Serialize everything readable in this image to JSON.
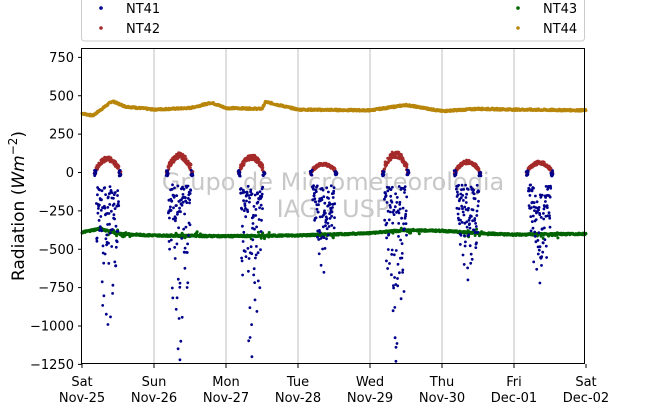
{
  "chart_data": {
    "type": "scatter",
    "ylabel": "Radiation (",
    "ylabel_unit_base": "Wm",
    "ylabel_unit_exp": "−2",
    "ylabel_close": ")",
    "ylim": [
      -1250,
      800
    ],
    "yticks": [
      {
        "value": 750,
        "label": "750"
      },
      {
        "value": 500,
        "label": "500"
      },
      {
        "value": 250,
        "label": "250"
      },
      {
        "value": 0,
        "label": "0"
      },
      {
        "value": -250,
        "label": "−250"
      },
      {
        "value": -500,
        "label": "−500"
      },
      {
        "value": -750,
        "label": "−750"
      },
      {
        "value": -1000,
        "label": "−1000"
      },
      {
        "value": -1250,
        "label": "−1250"
      }
    ],
    "xlim": [
      0,
      7
    ],
    "xticks": [
      {
        "value": 0,
        "day": "Sat",
        "date": "Nov-25"
      },
      {
        "value": 1,
        "day": "Sun",
        "date": "Nov-26"
      },
      {
        "value": 2,
        "day": "Mon",
        "date": "Nov-27"
      },
      {
        "value": 3,
        "day": "Tue",
        "date": "Nov-28"
      },
      {
        "value": 4,
        "day": "Wed",
        "date": "Nov-29"
      },
      {
        "value": 5,
        "day": "Thu",
        "date": "Nov-30"
      },
      {
        "value": 6,
        "day": "Fri",
        "date": "Dec-01"
      },
      {
        "value": 7,
        "day": "Sat",
        "date": "Dec-02"
      }
    ],
    "grid": "vertical",
    "legend_position": "top",
    "watermark": [
      "Grupo de Micrometeorologia",
      "IAG - USP"
    ],
    "series": [
      {
        "name": "NT41",
        "color": "#00008b",
        "description": "daytime troughs",
        "day_minima": [
          -990,
          -1220,
          -1200,
          -650,
          -1230,
          -700,
          -720
        ]
      },
      {
        "name": "NT42",
        "color": "#a52a2a",
        "description": "daytime humps",
        "day_peaks": [
          95,
          120,
          110,
          60,
          130,
          75,
          70
        ]
      },
      {
        "name": "NT43",
        "color": "#006400",
        "points": [
          [
            0,
            -390
          ],
          [
            0.25,
            -365
          ],
          [
            0.5,
            -400
          ],
          [
            1,
            -410
          ],
          [
            2,
            -415
          ],
          [
            3,
            -410
          ],
          [
            4,
            -395
          ],
          [
            4.5,
            -375
          ],
          [
            5,
            -380
          ],
          [
            5.5,
            -395
          ],
          [
            6,
            -405
          ],
          [
            7,
            -400
          ]
        ]
      },
      {
        "name": "NT44",
        "color": "#b8860b",
        "points": [
          [
            0,
            385
          ],
          [
            0.15,
            370
          ],
          [
            0.42,
            465
          ],
          [
            0.6,
            430
          ],
          [
            1,
            410
          ],
          [
            1.5,
            420
          ],
          [
            1.8,
            455
          ],
          [
            2,
            420
          ],
          [
            2.5,
            415
          ],
          [
            2.55,
            460
          ],
          [
            3,
            410
          ],
          [
            4,
            405
          ],
          [
            4.5,
            440
          ],
          [
            5,
            400
          ],
          [
            5.5,
            415
          ],
          [
            6,
            410
          ],
          [
            7,
            405
          ]
        ]
      }
    ]
  }
}
